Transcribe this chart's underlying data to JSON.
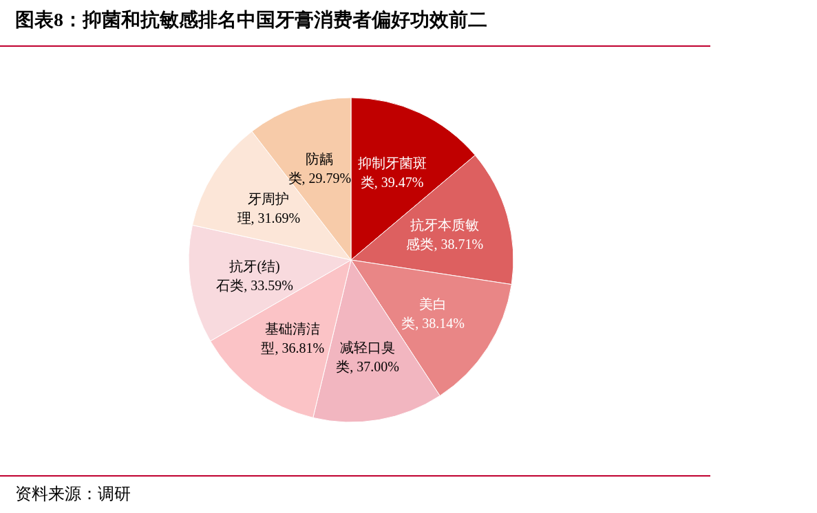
{
  "chart_data": {
    "type": "pie",
    "title": "图表8：抑菌和抗敏感排名中国牙膏消费者偏好功效前二",
    "categories": [
      "抑制牙菌斑类",
      "抗牙本质敏感类",
      "美白类",
      "减轻口臭类",
      "基础清洁型",
      "抗牙(结)石类",
      "牙周护理",
      "防龋类"
    ],
    "values": [
      39.47,
      38.71,
      38.14,
      37.0,
      36.81,
      33.59,
      31.69,
      29.79
    ],
    "value_labels": [
      "39.47%",
      "38.71%",
      "38.14%",
      "37.00%",
      "36.81%",
      "33.59%",
      "31.69%",
      "29.79%"
    ],
    "colors": [
      "#c00000",
      "#dd6060",
      "#e98686",
      "#f2b6c0",
      "#fbc3c6",
      "#f8dade",
      "#fce6d8",
      "#f7cba9"
    ],
    "legend": false,
    "annotations": [
      "资料来源：调研"
    ]
  }
}
